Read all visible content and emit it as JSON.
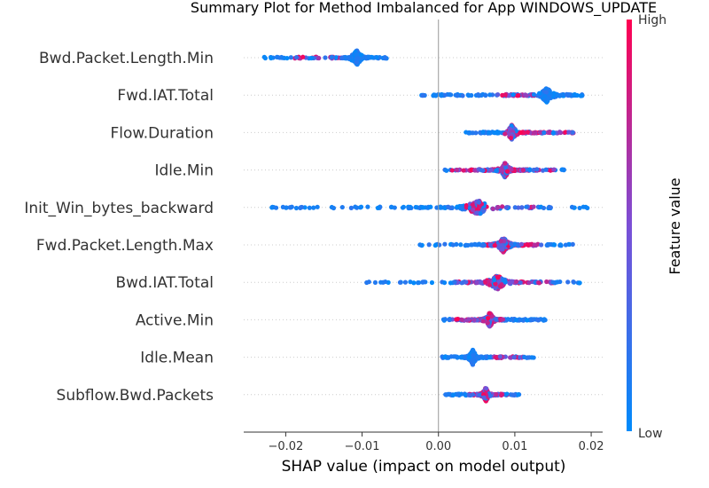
{
  "chart_data": {
    "type": "scatter",
    "subtype": "shap-beeswarm-summary",
    "title": "Summary Plot for Method Imbalanced for App WINDOWS_UPDATE",
    "xlabel": "SHAP value (impact on model output)",
    "xlim": [
      -0.0255,
      0.0215
    ],
    "xticks": [
      -0.02,
      -0.01,
      0.0,
      0.01,
      0.02
    ],
    "xtick_labels": [
      "−0.02",
      "−0.01",
      "0.00",
      "0.01",
      "0.02"
    ],
    "zero_line": true,
    "grid": false,
    "colorbar": {
      "label": "Feature value",
      "high_label": "High",
      "low_label": "Low",
      "high_color": "#ff0051",
      "low_color": "#008bfb",
      "mid_color": "#7b4fd6"
    },
    "features": [
      {
        "name": "Bwd.Packet.Length.Min",
        "range": [
          -0.0235,
          -0.0068
        ],
        "mode": -0.0107,
        "high_region": [
          -0.019,
          -0.0125
        ]
      },
      {
        "name": "Fwd.IAT.Total",
        "range": [
          -0.0025,
          0.0188
        ],
        "mode": 0.0142,
        "high_region": [
          0.0075,
          0.0125
        ]
      },
      {
        "name": "Flow.Duration",
        "range": [
          0.0035,
          0.0188
        ],
        "mode": 0.0096,
        "high_region": [
          0.0085,
          0.0188
        ]
      },
      {
        "name": "Idle.Min",
        "range": [
          0.0008,
          0.0165
        ],
        "mode": 0.0087,
        "high_region": [
          0.0015,
          0.0155
        ]
      },
      {
        "name": "Init_Win_bytes_backward",
        "range": [
          -0.0222,
          0.0195
        ],
        "mode": 0.0052,
        "high_region": [
          0.0035,
          0.013
        ]
      },
      {
        "name": "Fwd.Packet.Length.Max",
        "range": [
          -0.0025,
          0.0178
        ],
        "mode": 0.0085,
        "high_region": [
          0.006,
          0.0135
        ]
      },
      {
        "name": "Bwd.IAT.Total",
        "range": [
          -0.0095,
          0.0185
        ],
        "mode": 0.0077,
        "high_region": [
          0.002,
          0.015
        ]
      },
      {
        "name": "Active.Min",
        "range": [
          0.0,
          0.0142
        ],
        "mode": 0.0067,
        "high_region": [
          0.0015,
          0.0085
        ]
      },
      {
        "name": "Idle.Mean",
        "range": [
          0.0005,
          0.0125
        ],
        "mode": 0.0045,
        "high_region": [
          0.007,
          0.0115
        ]
      },
      {
        "name": "Subflow.Bwd.Packets",
        "range": [
          0.0005,
          0.0108
        ],
        "mode": 0.0062,
        "high_region": [
          0.004,
          0.0095
        ]
      }
    ]
  }
}
